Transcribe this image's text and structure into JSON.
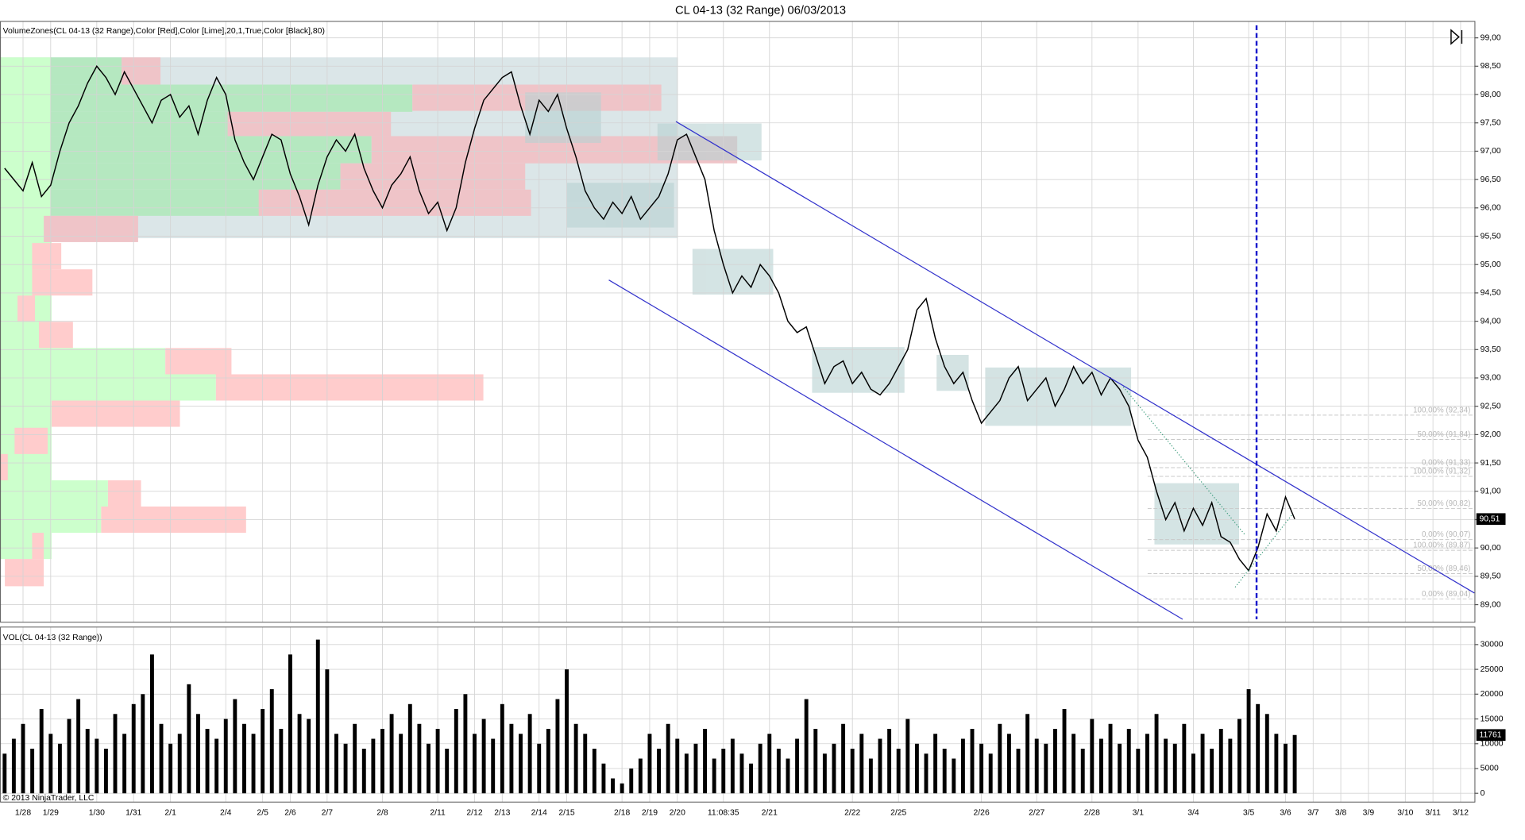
{
  "title": "CL 04-13 (32 Range)  06/03/2013",
  "footer": "© 2013 NinjaTrader, LLC",
  "chart_data": [
    {
      "type": "line",
      "subtitle": "VolumeZones(CL 04-13 (32 Range),Color [Red],Color [Lime],20,1,True,Color [Black],80)",
      "color": "#000000",
      "values": [
        96.7,
        96.5,
        96.3,
        96.8,
        96.2,
        96.4,
        97.0,
        97.5,
        97.8,
        98.2,
        98.5,
        98.3,
        98.0,
        98.4,
        98.1,
        97.8,
        97.5,
        97.9,
        98.0,
        97.6,
        97.8,
        97.3,
        97.9,
        98.3,
        98.0,
        97.2,
        96.8,
        96.5,
        96.9,
        97.3,
        97.2,
        96.6,
        96.2,
        95.7,
        96.4,
        96.9,
        97.2,
        97.0,
        97.3,
        96.7,
        96.3,
        96.0,
        96.4,
        96.6,
        96.9,
        96.3,
        95.9,
        96.1,
        95.6,
        96.0,
        96.8,
        97.4,
        97.9,
        98.1,
        98.3,
        98.4,
        97.8,
        97.3,
        97.9,
        97.7,
        98.0,
        97.4,
        96.9,
        96.3,
        96.0,
        95.8,
        96.1,
        95.9,
        96.2,
        95.8,
        96.0,
        96.2,
        96.6,
        97.2,
        97.3,
        96.9,
        96.5,
        95.6,
        95.0,
        94.5,
        94.8,
        94.6,
        95.0,
        94.8,
        94.5,
        94.0,
        93.8,
        93.9,
        93.4,
        92.9,
        93.2,
        93.3,
        92.9,
        93.1,
        92.8,
        92.7,
        92.9,
        93.2,
        93.5,
        94.2,
        94.4,
        93.7,
        93.2,
        92.9,
        93.1,
        92.6,
        92.2,
        92.4,
        92.6,
        93.0,
        93.2,
        92.6,
        92.8,
        93.0,
        92.5,
        92.8,
        93.2,
        92.9,
        93.1,
        92.7,
        93.0,
        92.8,
        92.5,
        91.9,
        91.6,
        91.0,
        90.5,
        90.8,
        90.3,
        90.7,
        90.4,
        90.8,
        90.2,
        90.1,
        89.8,
        89.6,
        90.0,
        90.6,
        90.3,
        90.9,
        90.51,
        null,
        null,
        null,
        null,
        null,
        null,
        null,
        null,
        null,
        null,
        null,
        null,
        null,
        null,
        null,
        null,
        null,
        null,
        null
      ],
      "last_price_label": "90,51",
      "ylim": [
        88.69,
        99.29
      ],
      "yticks": [
        {
          "value": 89,
          "label": "89,00"
        },
        {
          "value": 89.5,
          "label": "89,50"
        },
        {
          "value": 90,
          "label": "90,00"
        },
        {
          "value": 90.5,
          "label": "90,50"
        },
        {
          "value": 91,
          "label": "91,00"
        },
        {
          "value": 91.5,
          "label": "91,50"
        },
        {
          "value": 92,
          "label": "92,00"
        },
        {
          "value": 92.5,
          "label": "92,50"
        },
        {
          "value": 93,
          "label": "93,00"
        },
        {
          "value": 93.5,
          "label": "93,50"
        },
        {
          "value": 94,
          "label": "94,00"
        },
        {
          "value": 94.5,
          "label": "94,50"
        },
        {
          "value": 95,
          "label": "95,00"
        },
        {
          "value": 95.5,
          "label": "95,50"
        },
        {
          "value": 96,
          "label": "96,00"
        },
        {
          "value": 96.5,
          "label": "96,50"
        },
        {
          "value": 97,
          "label": "97,00"
        },
        {
          "value": 97.5,
          "label": "97,50"
        },
        {
          "value": 98,
          "label": "98,00"
        },
        {
          "value": 98.5,
          "label": "98,50"
        },
        {
          "value": 99,
          "label": "99,00"
        }
      ],
      "grid": true,
      "annotations": [
        "100,00% (92,34)",
        "50,00% (91,84)",
        "0,00% (91,33)",
        "100,00% (91,32)",
        "50,00% (90,82)",
        "0,00% (90,07)",
        "100,00% (89,87)",
        "50,00% (89,46)",
        "0,00% (89,04)"
      ]
    },
    {
      "type": "bar",
      "subtitle": "VOL(CL 04-13 (32 Range))",
      "color": "#000000",
      "categories": [
        null,
        null,
        "1/28",
        null,
        null,
        "1/29",
        null,
        null,
        null,
        null,
        "1/30",
        null,
        null,
        null,
        "1/31",
        null,
        null,
        null,
        "2/1",
        null,
        null,
        null,
        null,
        null,
        "2/4",
        null,
        null,
        null,
        "2/5",
        null,
        null,
        "2/6",
        null,
        null,
        null,
        "2/7",
        null,
        null,
        null,
        null,
        null,
        "2/8",
        null,
        null,
        null,
        null,
        null,
        "2/11",
        null,
        null,
        null,
        "2/12",
        null,
        null,
        "2/13",
        null,
        null,
        null,
        "2/14",
        null,
        null,
        "2/15",
        null,
        null,
        null,
        null,
        null,
        "2/18",
        null,
        null,
        "2/19",
        null,
        null,
        "2/20",
        null,
        null,
        null,
        null,
        "11:08:35",
        null,
        null,
        null,
        null,
        "2/21",
        null,
        null,
        null,
        null,
        null,
        null,
        null,
        null,
        "2/22",
        null,
        null,
        null,
        null,
        "2/25",
        null,
        null,
        null,
        null,
        null,
        null,
        null,
        null,
        "2/26",
        null,
        null,
        null,
        null,
        null,
        "2/27",
        null,
        null,
        null,
        null,
        null,
        "2/28",
        null,
        null,
        null,
        null,
        "3/1",
        null,
        null,
        null,
        null,
        null,
        "3/4",
        null,
        null,
        null,
        null,
        null,
        "3/5",
        null,
        null,
        null,
        "3/6",
        null,
        null,
        "3/7",
        null,
        null,
        "3/8",
        null,
        null,
        "3/9",
        null,
        null,
        null,
        "3/10",
        null,
        null,
        "3/11",
        null,
        null,
        "3/12",
        null
      ],
      "values": [
        8000,
        11000,
        14000,
        9000,
        17000,
        12000,
        10000,
        15000,
        19000,
        13000,
        11000,
        9000,
        16000,
        12000,
        18000,
        20000,
        28000,
        14000,
        10000,
        12000,
        22000,
        16000,
        13000,
        11000,
        15000,
        19000,
        14000,
        12000,
        17000,
        21000,
        13000,
        28000,
        16000,
        15000,
        31000,
        25000,
        12000,
        10000,
        14000,
        9000,
        11000,
        13000,
        16000,
        12000,
        18000,
        14000,
        10000,
        13000,
        9000,
        17000,
        20000,
        12000,
        15000,
        11000,
        18000,
        14000,
        12000,
        16000,
        10000,
        13000,
        19000,
        25000,
        14000,
        12000,
        9000,
        6000,
        3000,
        2000,
        5000,
        7000,
        12000,
        9000,
        14000,
        11000,
        8000,
        10000,
        13000,
        7000,
        9000,
        11000,
        8000,
        6000,
        10000,
        12000,
        9000,
        7000,
        11000,
        19000,
        13000,
        8000,
        10000,
        14000,
        9000,
        12000,
        7000,
        11000,
        13000,
        9000,
        15000,
        10000,
        8000,
        12000,
        9000,
        7000,
        11000,
        13000,
        10000,
        8000,
        14000,
        12000,
        9000,
        16000,
        11000,
        10000,
        13000,
        17000,
        12000,
        9000,
        15000,
        11000,
        14000,
        10000,
        13000,
        9000,
        12000,
        16000,
        11000,
        10000,
        14000,
        8000,
        12000,
        9000,
        13000,
        11000,
        15000,
        21000,
        18000,
        16000,
        12000,
        10000,
        11761,
        null,
        null,
        null,
        null,
        null,
        null,
        null,
        null,
        null,
        null,
        null,
        null,
        null,
        null,
        null,
        null,
        null,
        null,
        null
      ],
      "ylim": [
        -1765,
        33529
      ],
      "yticks": [
        0,
        5000,
        10000,
        15000,
        20000,
        25000,
        30000
      ],
      "grid": true
    }
  ]
}
